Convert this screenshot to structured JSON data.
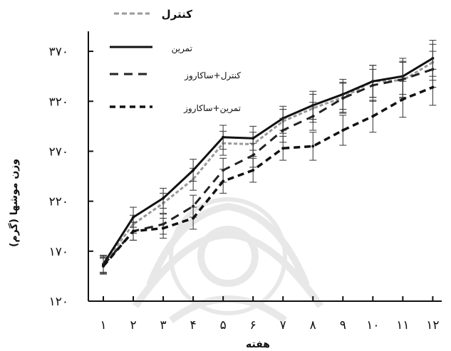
{
  "chart_data": {
    "type": "line",
    "title": "",
    "xlabel": "هفته",
    "ylabel": "وزن موشها (گرم)",
    "categories": [
      "۱",
      "۲",
      "۳",
      "۴",
      "۵",
      "۶",
      "۷",
      "۸",
      "۹",
      "۱۰",
      "۱۱",
      "۱۲"
    ],
    "x": [
      1,
      2,
      3,
      4,
      5,
      6,
      7,
      8,
      9,
      10,
      11,
      12
    ],
    "yticks": [
      120,
      170,
      220,
      270,
      320,
      370
    ],
    "ytick_labels": [
      "۱۲۰",
      "۱۷۰",
      "۲۲۰",
      "۲۷۰",
      "۳۲۰",
      "۳۷۰"
    ],
    "ylim": [
      120,
      390
    ],
    "xlim": [
      0.5,
      12.3
    ],
    "grid": false,
    "legend_position": "top-left",
    "series": [
      {
        "name": "کنترل",
        "style": "dotted-dash",
        "color": "#999999",
        "values": [
          157,
          197,
          218,
          242,
          278,
          277,
          300,
          313,
          324,
          340,
          341,
          359
        ],
        "errors": [
          8,
          9,
          10,
          11,
          12,
          12,
          12,
          14,
          15,
          16,
          18,
          18
        ]
      },
      {
        "name": "تمرین",
        "style": "solid",
        "color": "#111111",
        "values": [
          157,
          204,
          223,
          251,
          284,
          283,
          303,
          316,
          327,
          340,
          345,
          363
        ],
        "errors": [
          9,
          10,
          10,
          11,
          12,
          12,
          12,
          14,
          15,
          16,
          18,
          18
        ]
      },
      {
        "name": "کنترل+ساکاروز",
        "style": "dashed",
        "color": "#222222",
        "values": [
          156,
          190,
          197,
          215,
          251,
          266,
          291,
          305,
          323,
          336,
          342,
          352
        ],
        "errors": [
          8,
          9,
          10,
          11,
          12,
          12,
          12,
          14,
          15,
          16,
          18,
          18
        ]
      },
      {
        "name": "تمرین+ساکاروز",
        "style": "dashed-bold",
        "color": "#111111",
        "values": [
          155,
          190,
          193,
          203,
          240,
          251,
          273,
          275,
          291,
          305,
          322,
          334
        ],
        "errors": [
          8,
          9,
          10,
          11,
          12,
          12,
          12,
          14,
          15,
          16,
          18,
          18
        ]
      }
    ]
  }
}
